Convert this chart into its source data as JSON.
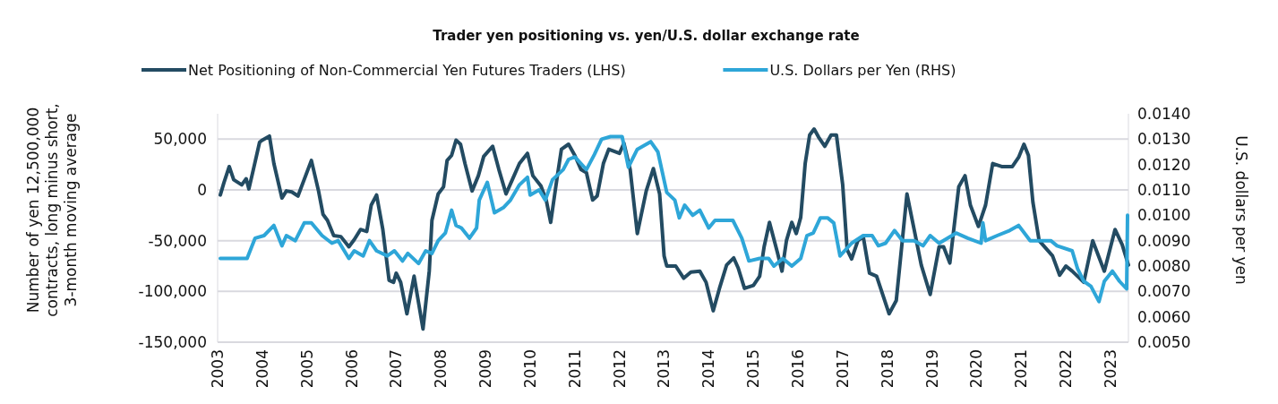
{
  "chart_data": {
    "type": "line",
    "title": "Trader yen positioning vs. yen/U.S. dollar exchange rate",
    "ylabel": "Number of yen 12,500,000 contracts, long minus short, 3-month moving average",
    "y2label": "U.S. dollars per yen",
    "legend": "top",
    "grid": "y",
    "xlim": [
      2003,
      2023.4
    ],
    "xticks": [
      2003,
      2004,
      2005,
      2006,
      2007,
      2008,
      2009,
      2010,
      2011,
      2012,
      2013,
      2014,
      2015,
      2016,
      2017,
      2018,
      2019,
      2020,
      2021,
      2022,
      2023
    ],
    "ylim": [
      -150000,
      75000
    ],
    "yticks": [
      {
        "value": -150000,
        "label": "-150,000"
      },
      {
        "value": -100000,
        "label": "-100,000"
      },
      {
        "value": -50000,
        "label": "-50,000"
      },
      {
        "value": 0,
        "label": "0"
      },
      {
        "value": 50000,
        "label": "50,000"
      }
    ],
    "y2lim": [
      0.005,
      0.014
    ],
    "y2ticks": [
      {
        "value": 0.005,
        "label": "0.0050"
      },
      {
        "value": 0.006,
        "label": "0.0060"
      },
      {
        "value": 0.007,
        "label": "0.0070"
      },
      {
        "value": 0.008,
        "label": "0.0080"
      },
      {
        "value": 0.009,
        "label": "0.0090"
      },
      {
        "value": 0.01,
        "label": "0.0100"
      },
      {
        "value": 0.011,
        "label": "0.0110"
      },
      {
        "value": 0.012,
        "label": "0.0120"
      },
      {
        "value": 0.013,
        "label": "0.0130"
      },
      {
        "value": 0.014,
        "label": "0.0140"
      }
    ],
    "series": [
      {
        "name": "Net Positioning of Non-Commercial Yen Futures Traders (LHS)",
        "color": "#234b62",
        "x": [
          2003.06,
          2003.14,
          2003.26,
          2003.36,
          2003.54,
          2003.64,
          2003.7,
          2003.8,
          2003.94,
          2004.0,
          2004.16,
          2004.26,
          2004.44,
          2004.54,
          2004.66,
          2004.8,
          2005.1,
          2005.26,
          2005.36,
          2005.46,
          2005.6,
          2005.76,
          2005.94,
          2006.06,
          2006.2,
          2006.34,
          2006.44,
          2006.56,
          2006.7,
          2006.84,
          2006.94,
          2007.0,
          2007.1,
          2007.24,
          2007.4,
          2007.6,
          2007.74,
          2007.8,
          2007.94,
          2008.06,
          2008.14,
          2008.24,
          2008.34,
          2008.44,
          2008.54,
          2008.7,
          2008.84,
          2008.96,
          2009.16,
          2009.3,
          2009.46,
          2009.6,
          2009.76,
          2009.94,
          2010.06,
          2010.24,
          2010.36,
          2010.46,
          2010.6,
          2010.7,
          2010.86,
          2011.0,
          2011.14,
          2011.26,
          2011.4,
          2011.5,
          2011.64,
          2011.76,
          2012.0,
          2012.1,
          2012.24,
          2012.4,
          2012.6,
          2012.76,
          2012.9,
          2013.0,
          2013.06,
          2013.26,
          2013.44,
          2013.6,
          2013.8,
          2013.94,
          2014.1,
          2014.24,
          2014.4,
          2014.56,
          2014.66,
          2014.8,
          2015.0,
          2015.14,
          2015.24,
          2015.36,
          2015.54,
          2015.64,
          2015.74,
          2015.86,
          2015.96,
          2016.06,
          2016.16,
          2016.26,
          2016.36,
          2016.46,
          2016.6,
          2016.74,
          2016.86,
          2017.0,
          2017.1,
          2017.2,
          2017.34,
          2017.46,
          2017.6,
          2017.76,
          2018.04,
          2018.2,
          2018.44,
          2018.6,
          2018.76,
          2018.96,
          2019.16,
          2019.26,
          2019.4,
          2019.6,
          2019.74,
          2019.86,
          2020.04,
          2020.2,
          2020.36,
          2020.56,
          2020.8,
          2020.94,
          2021.06,
          2021.16,
          2021.26,
          2021.4,
          2021.7,
          2021.86,
          2022.0,
          2022.14,
          2022.4,
          2022.6,
          2022.86,
          2023.1,
          2023.26,
          2023.4
        ],
        "values": [
          -5000,
          7000,
          23000,
          10000,
          5000,
          11000,
          1000,
          20000,
          47000,
          49000,
          53000,
          26000,
          -8000,
          -1000,
          -2000,
          -6000,
          29000,
          -1000,
          -24000,
          -30000,
          -45000,
          -46000,
          -56000,
          -49000,
          -39000,
          -41000,
          -15000,
          -5000,
          -39000,
          -89000,
          -91000,
          -82000,
          -91000,
          -122000,
          -85000,
          -137000,
          -80000,
          -30000,
          -4000,
          3000,
          29000,
          34000,
          49000,
          45000,
          26000,
          -1000,
          14000,
          33000,
          43000,
          20000,
          -4000,
          10000,
          26000,
          36000,
          14000,
          4000,
          -10000,
          -32000,
          11000,
          40000,
          45000,
          34000,
          20000,
          17000,
          -10000,
          -6000,
          26000,
          40000,
          36000,
          46000,
          20000,
          -43000,
          -1000,
          21000,
          -4000,
          -65000,
          -75000,
          -75000,
          -87000,
          -81000,
          -80000,
          -91000,
          -119000,
          -97000,
          -74000,
          -67000,
          -77000,
          -97000,
          -94000,
          -85000,
          -56000,
          -32000,
          -62000,
          -80000,
          -50000,
          -32000,
          -43000,
          -27000,
          26000,
          54000,
          60000,
          52000,
          43000,
          54000,
          54000,
          5000,
          -59000,
          -68000,
          -50000,
          -46000,
          -82000,
          -85000,
          -122000,
          -109000,
          -4000,
          -39000,
          -74000,
          -103000,
          -56000,
          -56000,
          -72000,
          3000,
          14000,
          -15000,
          -36000,
          -15000,
          26000,
          23000,
          23000,
          32000,
          45000,
          34000,
          -12000,
          -50000,
          -65000,
          -84000,
          -75000,
          -80000,
          -91000,
          -50000,
          -80000,
          -39000,
          -54000,
          -74000
        ]
      },
      {
        "name": "U.S. Dollars per Yen (RHS)",
        "color": "#2ea6d8",
        "axis": "y2",
        "x": [
          2003.06,
          2003.34,
          2003.66,
          2003.84,
          2004.04,
          2004.26,
          2004.44,
          2004.54,
          2004.74,
          2004.94,
          2005.1,
          2005.34,
          2005.56,
          2005.7,
          2005.94,
          2006.06,
          2006.26,
          2006.4,
          2006.56,
          2006.8,
          2006.96,
          2007.14,
          2007.26,
          2007.5,
          2007.66,
          2007.8,
          2007.94,
          2008.1,
          2008.24,
          2008.34,
          2008.46,
          2008.64,
          2008.8,
          2008.86,
          2009.04,
          2009.2,
          2009.4,
          2009.56,
          2009.76,
          2009.94,
          2010.0,
          2010.2,
          2010.34,
          2010.5,
          2010.74,
          2010.86,
          2011.0,
          2011.26,
          2011.44,
          2011.6,
          2011.8,
          2012.06,
          2012.2,
          2012.4,
          2012.7,
          2012.86,
          2013.06,
          2013.24,
          2013.34,
          2013.46,
          2013.64,
          2013.8,
          2014.0,
          2014.14,
          2014.54,
          2014.74,
          2014.9,
          2015.14,
          2015.34,
          2015.46,
          2015.66,
          2015.86,
          2016.06,
          2016.2,
          2016.34,
          2016.5,
          2016.66,
          2016.8,
          2016.94,
          2017.2,
          2017.46,
          2017.66,
          2017.8,
          2017.96,
          2018.16,
          2018.34,
          2018.6,
          2018.8,
          2018.96,
          2019.16,
          2019.54,
          2019.8,
          2020.1,
          2020.14,
          2020.2,
          2020.46,
          2020.74,
          2020.94,
          2021.2,
          2021.46,
          2021.66,
          2021.8,
          2022.14,
          2022.26,
          2022.4,
          2022.56,
          2022.74,
          2022.86,
          2023.04,
          2023.2,
          2023.36,
          2023.38
        ],
        "values": [
          0.0083,
          0.0083,
          0.0083,
          0.0091,
          0.0092,
          0.0096,
          0.0088,
          0.0092,
          0.009,
          0.0097,
          0.0097,
          0.0092,
          0.0089,
          0.009,
          0.0083,
          0.0086,
          0.0084,
          0.009,
          0.0086,
          0.0084,
          0.0086,
          0.0082,
          0.0085,
          0.0081,
          0.0086,
          0.0085,
          0.009,
          0.0093,
          0.0102,
          0.0096,
          0.0095,
          0.0091,
          0.0095,
          0.0106,
          0.0113,
          0.0101,
          0.0103,
          0.0106,
          0.0112,
          0.0115,
          0.0108,
          0.011,
          0.0106,
          0.0114,
          0.0118,
          0.0122,
          0.0123,
          0.0118,
          0.0124,
          0.013,
          0.0131,
          0.0131,
          0.0119,
          0.0126,
          0.0129,
          0.0125,
          0.0109,
          0.0106,
          0.0099,
          0.0104,
          0.01,
          0.0102,
          0.0095,
          0.0098,
          0.0098,
          0.0091,
          0.0082,
          0.0083,
          0.0083,
          0.008,
          0.0083,
          0.008,
          0.0083,
          0.0092,
          0.0093,
          0.0099,
          0.0099,
          0.0097,
          0.0084,
          0.0089,
          0.0092,
          0.0092,
          0.0088,
          0.0089,
          0.0094,
          0.009,
          0.009,
          0.0088,
          0.0092,
          0.0089,
          0.0093,
          0.0091,
          0.0089,
          0.0097,
          0.009,
          0.0092,
          0.0094,
          0.0096,
          0.009,
          0.009,
          0.009,
          0.0088,
          0.0086,
          0.0079,
          0.0074,
          0.0072,
          0.0066,
          0.0074,
          0.0078,
          0.0074,
          0.0071,
          0.01
        ]
      }
    ]
  }
}
